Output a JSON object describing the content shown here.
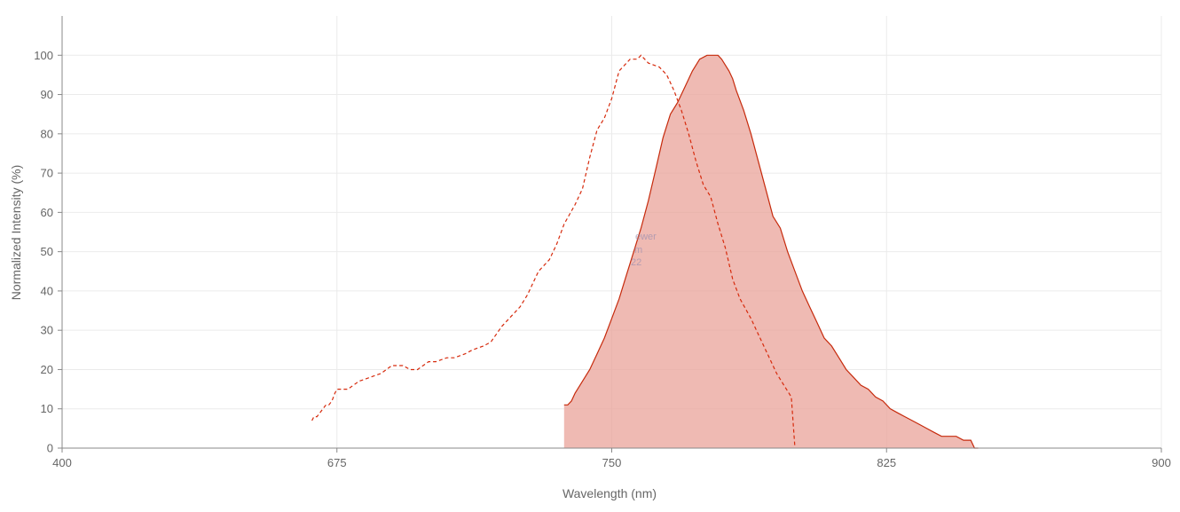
{
  "chart_data": {
    "type": "area",
    "xlabel": "Wavelength (nm)",
    "ylabel": "Normalized Intensity (%)",
    "x_ticks": [
      400,
      675,
      750,
      825,
      900
    ],
    "y_ticks": [
      0,
      10,
      20,
      30,
      40,
      50,
      60,
      70,
      80,
      90,
      100
    ],
    "ylim": [
      0,
      110
    ],
    "grid": true,
    "watermark_lines": [
      "ewer",
      "m",
      "22"
    ],
    "colors": {
      "excitation": "#d62a0c",
      "emission_line": "#c62a0c",
      "emission_fill": "#e9a399",
      "grid": "#ebebeb",
      "axis": "#888888"
    },
    "series": [
      {
        "style": "dashed",
        "x": [
          650,
          652,
          655,
          658,
          661,
          664,
          667,
          670,
          673,
          675,
          678,
          681,
          684,
          687,
          690,
          693,
          695,
          697,
          700,
          702,
          705,
          707,
          710,
          712,
          715,
          717,
          720,
          722,
          725,
          727,
          730,
          733,
          735,
          737,
          740,
          742,
          744,
          746,
          748,
          750,
          752,
          755,
          757,
          758,
          760,
          763,
          765,
          767,
          769,
          771,
          773,
          775,
          777,
          779,
          781,
          783,
          785,
          788,
          791,
          793,
          795,
          797,
          799,
          800
        ],
        "values": [
          7,
          8,
          8,
          9,
          10,
          11,
          11,
          12,
          14,
          15,
          15,
          17,
          18,
          19,
          21,
          21,
          20,
          20,
          22,
          22,
          23,
          23,
          24,
          25,
          26,
          27,
          31,
          33,
          36,
          39,
          45,
          48,
          52,
          57,
          62,
          66,
          74,
          81,
          84,
          89,
          96,
          99,
          99,
          100,
          98,
          97,
          95,
          91,
          86,
          80,
          73,
          67,
          64,
          57,
          51,
          43,
          38,
          33,
          27,
          23,
          19,
          16,
          13,
          0
        ]
      },
      {
        "style": "filled",
        "x": [
          737,
          738,
          739,
          740,
          742,
          744,
          746,
          748,
          750,
          752,
          754,
          756,
          758,
          760,
          762,
          764,
          766,
          768,
          770,
          772,
          774,
          776,
          778,
          779,
          780,
          782,
          783,
          784,
          786,
          788,
          790,
          792,
          794,
          796,
          798,
          800,
          802,
          804,
          806,
          808,
          810,
          812,
          814,
          816,
          818,
          820,
          822,
          824,
          826,
          828,
          830,
          832,
          834,
          836,
          838,
          840,
          842,
          844,
          846,
          848,
          849,
          850
        ],
        "values": [
          11,
          11,
          12,
          14,
          17,
          20,
          24,
          28,
          33,
          38,
          44,
          50,
          56,
          63,
          71,
          79,
          85,
          88,
          92,
          96,
          99,
          100,
          100,
          100,
          99,
          96,
          94,
          91,
          86,
          80,
          73,
          66,
          59,
          56,
          50,
          45,
          40,
          36,
          32,
          28,
          26,
          23,
          20,
          18,
          16,
          15,
          13,
          12,
          10,
          9,
          8,
          7,
          6,
          5,
          4,
          3,
          3,
          3,
          2,
          2,
          0,
          0
        ]
      }
    ]
  }
}
